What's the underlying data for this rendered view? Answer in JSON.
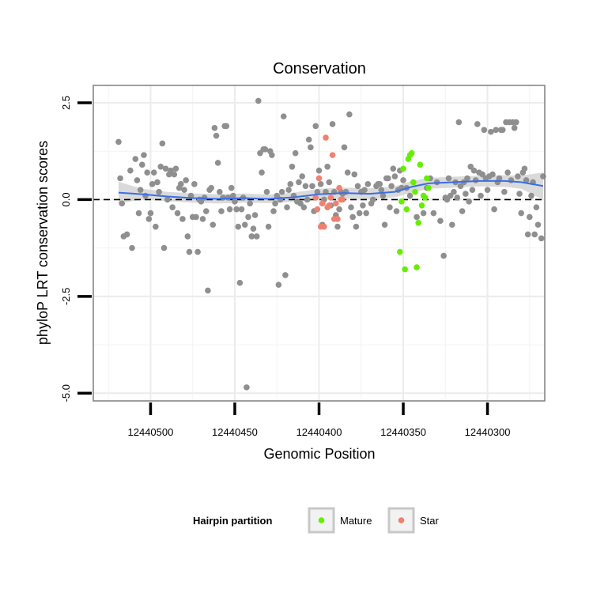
{
  "chart_data": {
    "type": "scatter",
    "title": "Conservation",
    "xlabel": "Genomic Position",
    "ylabel": "phyloP LRT conservation scores",
    "xlim": [
      12440534,
      12440266
    ],
    "ylim": [
      -5.2,
      2.95
    ],
    "x_reversed": true,
    "x_ticks": [
      12440500,
      12440450,
      12440400,
      12440350,
      12440300
    ],
    "x_tick_labels": [
      "12440500",
      "12440450",
      "12440400",
      "12440350",
      "12440300"
    ],
    "y_ticks": [
      2.5,
      0.0,
      -2.5,
      -5.0
    ],
    "y_tick_labels": [
      "2.5",
      "0.0",
      "-2.5",
      "-5.0"
    ],
    "reference_line": {
      "y": 0,
      "style": "dashed",
      "color": "#000000"
    },
    "legend": {
      "title": "Hairpin partition",
      "position": "bottom",
      "entries": [
        {
          "label": "Mature",
          "color": "#66ee00"
        },
        {
          "label": "Star",
          "color": "#f08070"
        }
      ]
    },
    "colors": {
      "other": "#8f8f8f",
      "mature": "#66ee00",
      "star": "#f08070",
      "smooth": "#3a6ee8",
      "band": "#d4d4d4"
    },
    "series": [
      {
        "name": "Other",
        "points": [
          [
            12440519,
            1.49
          ],
          [
            12440518,
            0.55
          ],
          [
            12440517,
            -0.1
          ],
          [
            12440516,
            -0.95
          ],
          [
            12440514,
            -0.9
          ],
          [
            12440512,
            0.75
          ],
          [
            12440511,
            -1.25
          ],
          [
            12440509,
            1.05
          ],
          [
            12440508,
            0.5
          ],
          [
            12440507,
            -0.35
          ],
          [
            12440506,
            0.25
          ],
          [
            12440505,
            0.9
          ],
          [
            12440504,
            1.15
          ],
          [
            12440503,
            0.1
          ],
          [
            12440502,
            0.7
          ],
          [
            12440501,
            -0.5
          ],
          [
            12440500,
            -0.35
          ],
          [
            12440499,
            0.4
          ],
          [
            12440498,
            0.7
          ],
          [
            12440497,
            -0.7
          ],
          [
            12440496,
            0.45
          ],
          [
            12440495,
            0.2
          ],
          [
            12440494,
            0.85
          ],
          [
            12440493,
            1.45
          ],
          [
            12440492,
            -1.25
          ],
          [
            12440491,
            0.8
          ],
          [
            12440490,
            0.0
          ],
          [
            12440489,
            0.65
          ],
          [
            12440488,
            0.75
          ],
          [
            12440487,
            -0.2
          ],
          [
            12440486,
            0.65
          ],
          [
            12440485,
            0.8
          ],
          [
            12440484,
            -0.35
          ],
          [
            12440483,
            0.3
          ],
          [
            12440482,
            0.4
          ],
          [
            12440481,
            -0.5
          ],
          [
            12440480,
            0.25
          ],
          [
            12440479,
            0.5
          ],
          [
            12440478,
            -0.95
          ],
          [
            12440477,
            -1.35
          ],
          [
            12440476,
            0.1
          ],
          [
            12440475,
            -0.45
          ],
          [
            12440474,
            0.4
          ],
          [
            12440473,
            -0.45
          ],
          [
            12440472,
            -1.35
          ],
          [
            12440471,
            0.0
          ],
          [
            12440470,
            -0.05
          ],
          [
            12440469,
            -0.5
          ],
          [
            12440468,
            0.05
          ],
          [
            12440467,
            -0.3
          ],
          [
            12440466,
            -2.35
          ],
          [
            12440465,
            0.25
          ],
          [
            12440464,
            0.3
          ],
          [
            12440463,
            -0.65
          ],
          [
            12440462,
            1.85
          ],
          [
            12440461,
            1.65
          ],
          [
            12440460,
            0.95
          ],
          [
            12440459,
            0.2
          ],
          [
            12440458,
            -0.3
          ],
          [
            12440457,
            0.05
          ],
          [
            12440456,
            1.9
          ],
          [
            12440455,
            1.9
          ],
          [
            12440454,
            0.05
          ],
          [
            12440453,
            -0.25
          ],
          [
            12440452,
            0.3
          ],
          [
            12440451,
            0.1
          ],
          [
            12440450,
            -0.05
          ],
          [
            12440449,
            -0.25
          ],
          [
            12440448,
            -0.7
          ],
          [
            12440447,
            -2.15
          ],
          [
            12440446,
            -0.25
          ],
          [
            12440445,
            0.05
          ],
          [
            12440444,
            -0.65
          ],
          [
            12440443,
            -4.85
          ],
          [
            12440442,
            -0.45
          ],
          [
            12440441,
            -0.1
          ],
          [
            12440440,
            -0.95
          ],
          [
            12440439,
            -0.75
          ],
          [
            12440438,
            -0.4
          ],
          [
            12440437,
            -0.95
          ],
          [
            12440436,
            2.55
          ],
          [
            12440435,
            1.2
          ],
          [
            12440434,
            0.7
          ],
          [
            12440433,
            1.3
          ],
          [
            12440432,
            1.3
          ],
          [
            12440431,
            0.2
          ],
          [
            12440430,
            -0.7
          ],
          [
            12440429,
            1.25
          ],
          [
            12440428,
            1.15
          ],
          [
            12440427,
            -0.3
          ],
          [
            12440426,
            -0.1
          ],
          [
            12440425,
            0.1
          ],
          [
            12440424,
            -2.2
          ],
          [
            12440423,
            0.0
          ],
          [
            12440422,
            0.2
          ],
          [
            12440421,
            2.15
          ],
          [
            12440420,
            -1.95
          ],
          [
            12440419,
            -0.2
          ],
          [
            12440418,
            0.25
          ],
          [
            12440417,
            0.4
          ],
          [
            12440416,
            0.85
          ],
          [
            12440415,
            0.1
          ],
          [
            12440414,
            1.2
          ],
          [
            12440413,
            -0.05
          ],
          [
            12440412,
            0.45
          ],
          [
            12440411,
            -0.1
          ],
          [
            12440410,
            0.6
          ],
          [
            12440409,
            -0.2
          ],
          [
            12440408,
            0.35
          ],
          [
            12440407,
            0.0
          ],
          [
            12440406,
            1.55
          ],
          [
            12440405,
            1.35
          ],
          [
            12440404,
            0.35
          ],
          [
            12440403,
            -0.3
          ],
          [
            12440402,
            1.9
          ],
          [
            12440401,
            0.2
          ],
          [
            12440400,
            0.75
          ],
          [
            12440399,
            0.4
          ],
          [
            12440398,
            -0.65
          ],
          [
            12440397,
            0.0
          ],
          [
            12440396,
            0.2
          ],
          [
            12440395,
            0.85
          ],
          [
            12440394,
            0.45
          ],
          [
            12440393,
            -0.15
          ],
          [
            12440392,
            1.95
          ],
          [
            12440391,
            0.2
          ],
          [
            12440390,
            -0.4
          ],
          [
            12440389,
            -0.7
          ],
          [
            12440388,
            -0.25
          ],
          [
            12440387,
            0.2
          ],
          [
            12440386,
            0.15
          ],
          [
            12440385,
            1.35
          ],
          [
            12440384,
            0.2
          ],
          [
            12440383,
            0.7
          ],
          [
            12440382,
            2.2
          ],
          [
            12440381,
            -0.2
          ],
          [
            12440380,
            -0.45
          ],
          [
            12440379,
            0.65
          ],
          [
            12440378,
            -0.7
          ],
          [
            12440377,
            0.35
          ],
          [
            12440376,
            -0.35
          ],
          [
            12440375,
            0.2
          ],
          [
            12440374,
            -0.15
          ],
          [
            12440373,
            0.25
          ],
          [
            12440372,
            -0.35
          ],
          [
            12440371,
            0.4
          ],
          [
            12440369,
            -0.1
          ],
          [
            12440368,
            0.0
          ],
          [
            12440366,
            0.35
          ],
          [
            12440365,
            0.4
          ],
          [
            12440364,
            0.4
          ],
          [
            12440363,
            0.25
          ],
          [
            12440362,
            0.1
          ],
          [
            12440361,
            -0.65
          ],
          [
            12440360,
            0.55
          ],
          [
            12440359,
            0.55
          ],
          [
            12440358,
            -0.2
          ],
          [
            12440357,
            0.35
          ],
          [
            12440356,
            0.8
          ],
          [
            12440355,
            0.6
          ],
          [
            12440354,
            -0.3
          ],
          [
            12440353,
            0.25
          ],
          [
            12440352,
            0.75
          ],
          [
            12440351,
            0.3
          ],
          [
            12440350,
            0.5
          ],
          [
            12440348,
            0.3
          ],
          [
            12440346,
            0.1
          ],
          [
            12440342,
            -0.45
          ],
          [
            12440338,
            -0.35
          ],
          [
            12440336,
            0.3
          ],
          [
            12440334,
            0.55
          ],
          [
            12440332,
            -0.35
          ],
          [
            12440330,
            0.45
          ],
          [
            12440328,
            -0.55
          ],
          [
            12440326,
            -1.45
          ],
          [
            12440325,
            0.05
          ],
          [
            12440324,
            0.0
          ],
          [
            12440323,
            0.55
          ],
          [
            12440322,
            0.1
          ],
          [
            12440321,
            -0.65
          ],
          [
            12440320,
            0.2
          ],
          [
            12440319,
            0.45
          ],
          [
            12440318,
            0.05
          ],
          [
            12440317,
            2.0
          ],
          [
            12440316,
            0.35
          ],
          [
            12440315,
            -0.3
          ],
          [
            12440314,
            0.45
          ],
          [
            12440313,
            0.15
          ],
          [
            12440312,
            0.55
          ],
          [
            12440311,
            -0.05
          ],
          [
            12440310,
            0.85
          ],
          [
            12440309,
            0.25
          ],
          [
            12440308,
            0.75
          ],
          [
            12440307,
            0.5
          ],
          [
            12440306,
            1.95
          ],
          [
            12440305,
            0.7
          ],
          [
            12440304,
            0.1
          ],
          [
            12440303,
            0.65
          ],
          [
            12440302,
            1.8
          ],
          [
            12440301,
            0.55
          ],
          [
            12440300,
            0.25
          ],
          [
            12440299,
            0.6
          ],
          [
            12440298,
            1.75
          ],
          [
            12440297,
            0.65
          ],
          [
            12440296,
            -0.25
          ],
          [
            12440295,
            1.8
          ],
          [
            12440294,
            0.45
          ],
          [
            12440293,
            0.55
          ],
          [
            12440292,
            1.8
          ],
          [
            12440291,
            1.8
          ],
          [
            12440290,
            0.2
          ],
          [
            12440289,
            2.0
          ],
          [
            12440288,
            0.7
          ],
          [
            12440287,
            2.0
          ],
          [
            12440286,
            0.5
          ],
          [
            12440285,
            2.0
          ],
          [
            12440284,
            1.85
          ],
          [
            12440283,
            2.0
          ],
          [
            12440282,
            0.6
          ],
          [
            12440281,
            0.15
          ],
          [
            12440280,
            -0.35
          ],
          [
            12440279,
            0.7
          ],
          [
            12440278,
            0.8
          ],
          [
            12440277,
            0.5
          ],
          [
            12440276,
            -0.9
          ],
          [
            12440275,
            -0.45
          ],
          [
            12440274,
            0.1
          ],
          [
            12440273,
            0.45
          ],
          [
            12440272,
            -0.9
          ],
          [
            12440271,
            -0.2
          ],
          [
            12440270,
            -0.65
          ],
          [
            12440268,
            -1.0
          ],
          [
            12440267,
            0.6
          ]
        ]
      },
      {
        "name": "Mature",
        "points": [
          [
            12440352,
            -1.35
          ],
          [
            12440351,
            -0.05
          ],
          [
            12440350,
            0.8
          ],
          [
            12440349,
            -1.8
          ],
          [
            12440348,
            -0.25
          ],
          [
            12440347,
            1.05
          ],
          [
            12440346,
            1.15
          ],
          [
            12440345,
            1.2
          ],
          [
            12440344,
            0.45
          ],
          [
            12440343,
            0.2
          ],
          [
            12440342,
            -1.75
          ],
          [
            12440341,
            -0.6
          ],
          [
            12440340,
            0.9
          ],
          [
            12440339,
            -0.15
          ],
          [
            12440338,
            0.1
          ],
          [
            12440337,
            0.05
          ],
          [
            12440336,
            0.55
          ],
          [
            12440335,
            0.3
          ]
        ]
      },
      {
        "name": "Star",
        "points": [
          [
            12440402,
            0.05
          ],
          [
            12440401,
            -0.25
          ],
          [
            12440400,
            0.55
          ],
          [
            12440399,
            -0.7
          ],
          [
            12440398,
            -0.1
          ],
          [
            12440397,
            -0.7
          ],
          [
            12440396,
            1.6
          ],
          [
            12440395,
            -0.2
          ],
          [
            12440394,
            -0.15
          ],
          [
            12440393,
            0.05
          ],
          [
            12440392,
            1.15
          ],
          [
            12440391,
            -0.5
          ],
          [
            12440390,
            -0.1
          ],
          [
            12440389,
            -0.5
          ],
          [
            12440388,
            0.3
          ],
          [
            12440387,
            0.0
          ],
          [
            12440386,
            0.0
          ]
        ]
      }
    ],
    "smooth": {
      "method": "loess",
      "points": [
        [
          12440519,
          0.18
        ],
        [
          12440505,
          0.14
        ],
        [
          12440490,
          0.08
        ],
        [
          12440475,
          0.04
        ],
        [
          12440460,
          0.02
        ],
        [
          12440445,
          0.04
        ],
        [
          12440430,
          0.02
        ],
        [
          12440415,
          0.06
        ],
        [
          12440400,
          0.14
        ],
        [
          12440385,
          0.17
        ],
        [
          12440370,
          0.15
        ],
        [
          12440355,
          0.2
        ],
        [
          12440345,
          0.33
        ],
        [
          12440335,
          0.42
        ],
        [
          12440320,
          0.45
        ],
        [
          12440305,
          0.48
        ],
        [
          12440290,
          0.48
        ],
        [
          12440280,
          0.45
        ],
        [
          12440267,
          0.35
        ]
      ],
      "band_halfwidth": [
        0.28,
        0.14,
        0.12,
        0.12,
        0.12,
        0.12,
        0.11,
        0.12,
        0.14,
        0.14,
        0.14,
        0.14,
        0.15,
        0.14,
        0.14,
        0.14,
        0.15,
        0.17,
        0.35
      ]
    }
  }
}
